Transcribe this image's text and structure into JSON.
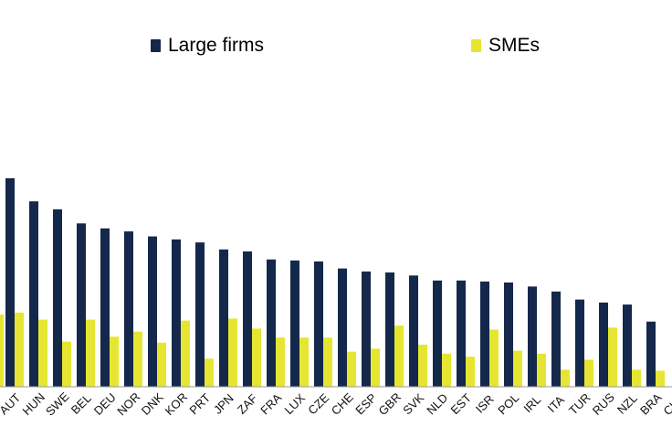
{
  "chart_data": {
    "type": "bar",
    "categories": [
      "AUT",
      "HUN",
      "SWE",
      "BEL",
      "DEU",
      "NOR",
      "DNK",
      "KOR",
      "PRT",
      "JPN",
      "ZAF",
      "FRA",
      "LUX",
      "CZE",
      "CHE",
      "ESP",
      "GBR",
      "SVK",
      "NLD",
      "EST",
      "ISR",
      "POL",
      "IRL",
      "ITA",
      "TUR",
      "RUS",
      "NZL",
      "BRA",
      "CHN"
    ],
    "series": [
      {
        "name": "Large firms",
        "color": "#14284b",
        "values": [
          208,
          185,
          177,
          163,
          158,
          155,
          150,
          147,
          144,
          137,
          135,
          127,
          126,
          125,
          118,
          115,
          114,
          111,
          106,
          106,
          105,
          104,
          100,
          95,
          87,
          84,
          82,
          65,
          0
        ]
      },
      {
        "name": "SMEs",
        "color": "#e6e632",
        "values": [
          74,
          67,
          45,
          67,
          50,
          55,
          44,
          66,
          28,
          68,
          58,
          49,
          49,
          49,
          35,
          38,
          61,
          42,
          33,
          30,
          57,
          36,
          33,
          17,
          27,
          59,
          17,
          16,
          0
        ]
      }
    ],
    "partial_first": {
      "name": "Large firms",
      "visible": false,
      "sme_value": 72
    },
    "legend_position": "top",
    "grid": false,
    "ylim": [
      0,
      260
    ]
  },
  "legend": {
    "large_label": "Large firms",
    "sme_label": "SMEs"
  }
}
